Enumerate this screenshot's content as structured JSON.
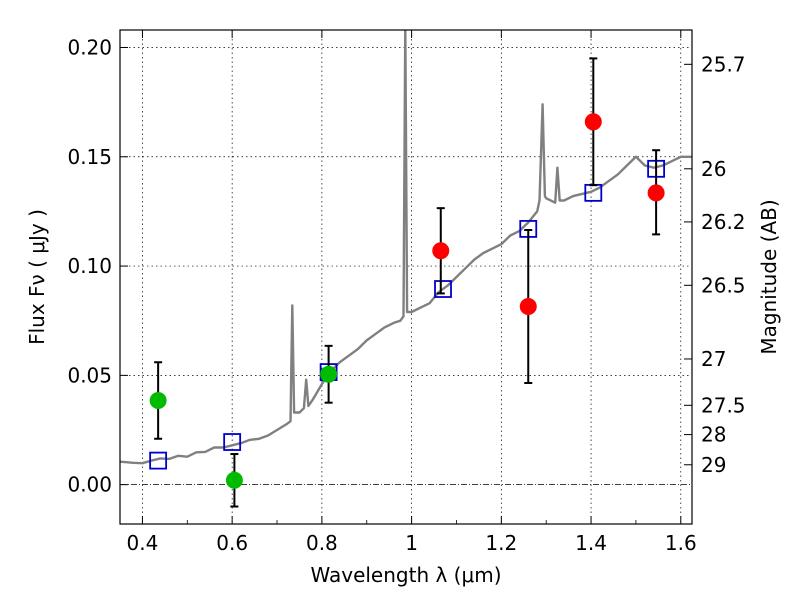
{
  "chart_data": {
    "type": "scatter",
    "xlabel": "Wavelength  λ (μm)",
    "ylabel": "Flux  Fν  ( μJy )",
    "y2label": "Magnitude (AB)",
    "xlim": [
      0.35,
      1.625
    ],
    "ylim": [
      -0.018,
      0.208
    ],
    "x_ticks": [
      0.4,
      0.6,
      0.8,
      1.0,
      1.2,
      1.4,
      1.6
    ],
    "x_tick_labels": [
      "0.4",
      "0.6",
      "0.8",
      "1",
      "1.2",
      "1.4",
      "1.6"
    ],
    "y_ticks": [
      0.0,
      0.05,
      0.1,
      0.15,
      0.2
    ],
    "y_tick_labels": [
      "0.00",
      "0.05",
      "0.10",
      "0.15",
      "0.20"
    ],
    "y2_ticks": [
      {
        "label": "25.7",
        "flux": 0.1923
      },
      {
        "label": "26",
        "flux": 0.1445
      },
      {
        "label": "26.2",
        "flux": 0.1202
      },
      {
        "label": "26.5",
        "flux": 0.0912
      },
      {
        "label": "27",
        "flux": 0.0575
      },
      {
        "label": "27.5",
        "flux": 0.0363
      },
      {
        "label": "28",
        "flux": 0.0229
      },
      {
        "label": "29",
        "flux": 0.0091
      }
    ],
    "grid": true,
    "zero_line": true,
    "series": [
      {
        "kind": "line",
        "color": "#808080",
        "points": [
          [
            0.35,
            0.0105
          ],
          [
            0.38,
            0.01
          ],
          [
            0.4,
            0.0098
          ],
          [
            0.42,
            0.011
          ],
          [
            0.44,
            0.012
          ],
          [
            0.46,
            0.0118
          ],
          [
            0.48,
            0.0132
          ],
          [
            0.5,
            0.0128
          ],
          [
            0.52,
            0.0148
          ],
          [
            0.54,
            0.015
          ],
          [
            0.56,
            0.017
          ],
          [
            0.58,
            0.017
          ],
          [
            0.6,
            0.018
          ],
          [
            0.62,
            0.019
          ],
          [
            0.64,
            0.0205
          ],
          [
            0.66,
            0.021
          ],
          [
            0.68,
            0.0225
          ],
          [
            0.7,
            0.025
          ],
          [
            0.72,
            0.0275
          ],
          [
            0.73,
            0.029
          ],
          [
            0.734,
            0.082
          ],
          [
            0.738,
            0.033
          ],
          [
            0.75,
            0.033
          ],
          [
            0.76,
            0.035
          ],
          [
            0.765,
            0.048
          ],
          [
            0.77,
            0.036
          ],
          [
            0.78,
            0.039
          ],
          [
            0.8,
            0.046
          ],
          [
            0.82,
            0.052
          ],
          [
            0.84,
            0.056
          ],
          [
            0.86,
            0.059
          ],
          [
            0.88,
            0.062
          ],
          [
            0.9,
            0.066
          ],
          [
            0.92,
            0.069
          ],
          [
            0.94,
            0.072
          ],
          [
            0.96,
            0.074
          ],
          [
            0.975,
            0.075
          ],
          [
            0.982,
            0.077
          ],
          [
            0.986,
            0.21
          ],
          [
            0.99,
            0.079
          ],
          [
            1.0,
            0.079
          ],
          [
            1.02,
            0.081
          ],
          [
            1.04,
            0.083
          ],
          [
            1.06,
            0.088
          ],
          [
            1.08,
            0.091
          ],
          [
            1.1,
            0.095
          ],
          [
            1.12,
            0.099
          ],
          [
            1.14,
            0.103
          ],
          [
            1.16,
            0.106
          ],
          [
            1.18,
            0.108
          ],
          [
            1.2,
            0.11
          ],
          [
            1.22,
            0.114
          ],
          [
            1.24,
            0.116
          ],
          [
            1.26,
            0.12
          ],
          [
            1.28,
            0.125
          ],
          [
            1.285,
            0.13
          ],
          [
            1.292,
            0.174
          ],
          [
            1.297,
            0.132
          ],
          [
            1.3,
            0.131
          ],
          [
            1.32,
            0.129
          ],
          [
            1.325,
            0.145
          ],
          [
            1.33,
            0.13
          ],
          [
            1.34,
            0.13
          ],
          [
            1.36,
            0.132
          ],
          [
            1.38,
            0.133
          ],
          [
            1.4,
            0.134
          ],
          [
            1.42,
            0.136
          ],
          [
            1.44,
            0.139
          ],
          [
            1.46,
            0.142
          ],
          [
            1.48,
            0.146
          ],
          [
            1.5,
            0.15
          ],
          [
            1.52,
            0.146
          ],
          [
            1.54,
            0.145
          ],
          [
            1.56,
            0.146
          ],
          [
            1.58,
            0.148
          ],
          [
            1.6,
            0.15
          ],
          [
            1.625,
            0.15
          ]
        ]
      },
      {
        "kind": "open-square",
        "color": "#0000cc",
        "points": [
          [
            0.435,
            0.011
          ],
          [
            0.6,
            0.0195
          ],
          [
            0.815,
            0.0515
          ],
          [
            1.07,
            0.0895
          ],
          [
            1.26,
            0.117
          ],
          [
            1.405,
            0.1335
          ],
          [
            1.545,
            0.1445
          ]
        ]
      },
      {
        "kind": "circle-errorbar",
        "color": "#00bb00",
        "points": [
          {
            "x": 0.435,
            "y": 0.0385,
            "lo": 0.021,
            "hi": 0.056
          },
          {
            "x": 0.605,
            "y": 0.002,
            "lo": -0.01,
            "hi": 0.014
          },
          {
            "x": 0.815,
            "y": 0.0505,
            "lo": 0.0375,
            "hi": 0.0635
          }
        ]
      },
      {
        "kind": "circle-errorbar",
        "color": "#ff0000",
        "points": [
          {
            "x": 1.065,
            "y": 0.107,
            "lo": 0.0875,
            "hi": 0.1265
          },
          {
            "x": 1.26,
            "y": 0.0815,
            "lo": 0.0465,
            "hi": 0.1165
          },
          {
            "x": 1.405,
            "y": 0.166,
            "lo": 0.137,
            "hi": 0.195
          },
          {
            "x": 1.545,
            "y": 0.1335,
            "lo": 0.1145,
            "hi": 0.153
          }
        ]
      }
    ]
  }
}
